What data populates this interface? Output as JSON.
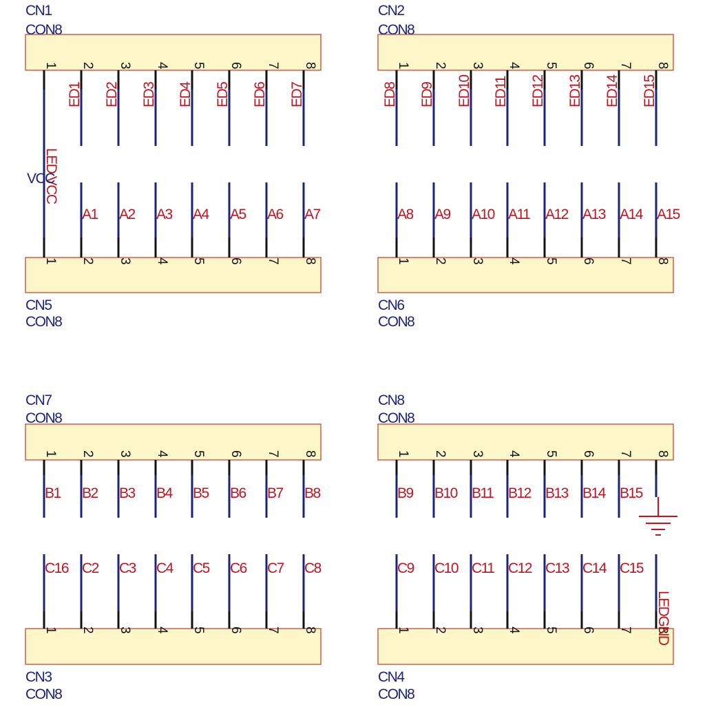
{
  "connectors": {
    "cn1": {
      "ref": "CN1",
      "value": "CON8"
    },
    "cn2": {
      "ref": "CN2",
      "value": "CON8"
    },
    "cn5": {
      "ref": "CN5",
      "value": "CON8"
    },
    "cn6": {
      "ref": "CN6",
      "value": "CON8"
    },
    "cn7": {
      "ref": "CN7",
      "value": "CON8"
    },
    "cn8": {
      "ref": "CN8",
      "value": "CON8"
    },
    "cn3": {
      "ref": "CN3",
      "value": "CON8"
    },
    "cn4": {
      "ref": "CN4",
      "value": "CON8"
    }
  },
  "pin_numbers": [
    "1",
    "2",
    "3",
    "4",
    "5",
    "6",
    "7",
    "8"
  ],
  "nets": {
    "ed_left": [
      "ED1",
      "ED2",
      "ED3",
      "ED4",
      "ED5",
      "ED6",
      "ED7"
    ],
    "ed_right": [
      "ED8",
      "ED9",
      "ED10",
      "ED11",
      "ED12",
      "ED13",
      "ED14",
      "ED15"
    ],
    "a_left": [
      "A1",
      "A2",
      "A3",
      "A4",
      "A5",
      "A6",
      "A7"
    ],
    "a_right": [
      "A8",
      "A9",
      "A10",
      "A11",
      "A12",
      "A13",
      "A14",
      "A15"
    ],
    "b_left": [
      "B1",
      "B2",
      "B3",
      "B4",
      "B5",
      "B6",
      "B7",
      "B8"
    ],
    "b_right": [
      "B9",
      "B10",
      "B11",
      "B12",
      "B13",
      "B14",
      "B15"
    ],
    "c_left": [
      "C16",
      "C2",
      "C3",
      "C4",
      "C5",
      "C6",
      "C7",
      "C8"
    ],
    "c_right": [
      "C9",
      "C10",
      "C11",
      "C12",
      "C13",
      "C14",
      "C15"
    ],
    "vcc_vertical": "LED VCC",
    "vcc_horizontal": "VCC",
    "led_gnd": "LEDGND"
  },
  "colors": {
    "body_fill": "#fdf6c8",
    "body_stroke": "#c0392b",
    "wire": "#1a237e",
    "net_label": "#c0141e",
    "ref_label": "#1a237e"
  }
}
